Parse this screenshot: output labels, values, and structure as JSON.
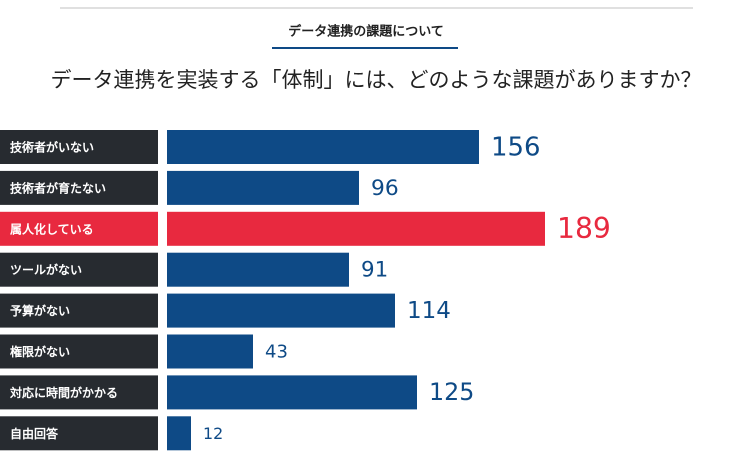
{
  "chart_data": {
    "type": "bar",
    "subtitle": "データ連携の課題について",
    "title": "データ連携を実装する「体制」には、どのような課題がありますか？",
    "categories": [
      "技術者がいない",
      "技術者が育たない",
      "属人化している",
      "ツールがない",
      "予算がない",
      "権限がない",
      "対応に時間がかかる",
      "自由回答"
    ],
    "values": [
      156,
      96,
      189,
      91,
      114,
      43,
      125,
      12
    ],
    "colors": [
      "#0e4a86",
      "#0e4a86",
      "#e8293f",
      "#0e4a86",
      "#0e4a86",
      "#0e4a86",
      "#0e4a86",
      "#0e4a86"
    ],
    "label_box_colors": [
      "#272b30",
      "#272b30",
      "#e8293f",
      "#272b30",
      "#272b30",
      "#272b30",
      "#272b30",
      "#272b30"
    ]
  }
}
